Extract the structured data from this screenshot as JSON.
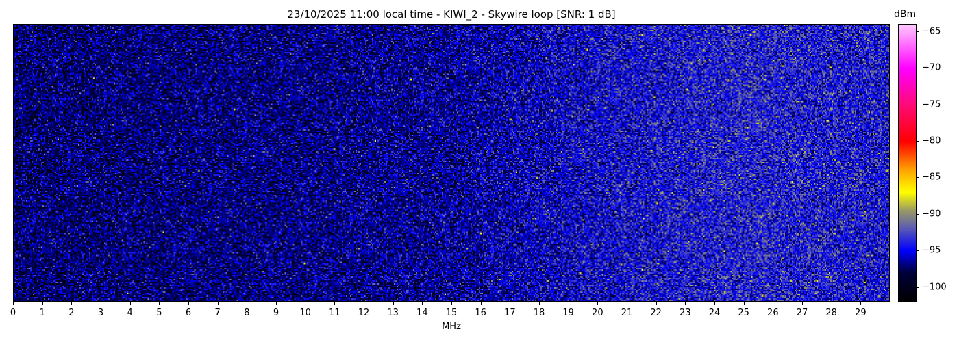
{
  "chart_data": {
    "type": "heatmap",
    "title": "23/10/2025 11:00 local time - KIWI_2 - Skywire loop [SNR: 1 dB]",
    "xlabel": "MHz",
    "ylabel": "",
    "xlim": [
      0,
      30
    ],
    "x_ticks": [
      "0",
      "1",
      "2",
      "3",
      "4",
      "5",
      "6",
      "7",
      "8",
      "9",
      "10",
      "11",
      "12",
      "13",
      "14",
      "15",
      "16",
      "17",
      "18",
      "19",
      "20",
      "21",
      "22",
      "23",
      "24",
      "25",
      "26",
      "27",
      "28",
      "29"
    ],
    "colorbar": {
      "label": "dBm",
      "range": [
        -102,
        -64
      ],
      "ticks": [
        "−65",
        "−70",
        "−75",
        "−80",
        "−85",
        "−90",
        "−95",
        "−100"
      ],
      "tick_values": [
        -65,
        -70,
        -75,
        -80,
        -85,
        -90,
        -95,
        -100
      ],
      "colormap_stops": [
        {
          "value": -102,
          "color": "#000000"
        },
        {
          "value": -98,
          "color": "#00003c"
        },
        {
          "value": -95,
          "color": "#0000ff"
        },
        {
          "value": -92,
          "color": "#5a5ab4"
        },
        {
          "value": -89.5,
          "color": "#9a9a64"
        },
        {
          "value": -87,
          "color": "#ffff00"
        },
        {
          "value": -84,
          "color": "#ffa500"
        },
        {
          "value": -80,
          "color": "#ff0000"
        },
        {
          "value": -75,
          "color": "#ff0a78"
        },
        {
          "value": -70,
          "color": "#ff00ff"
        },
        {
          "value": -64,
          "color": "#ffc8ff"
        }
      ]
    },
    "approx_mean_level_dbm": {
      "x_mhz": [
        0,
        10,
        15,
        20,
        25,
        30
      ],
      "dbm": [
        -97.5,
        -97,
        -96.5,
        -95,
        -94,
        -94.5
      ]
    },
    "grid": false
  }
}
